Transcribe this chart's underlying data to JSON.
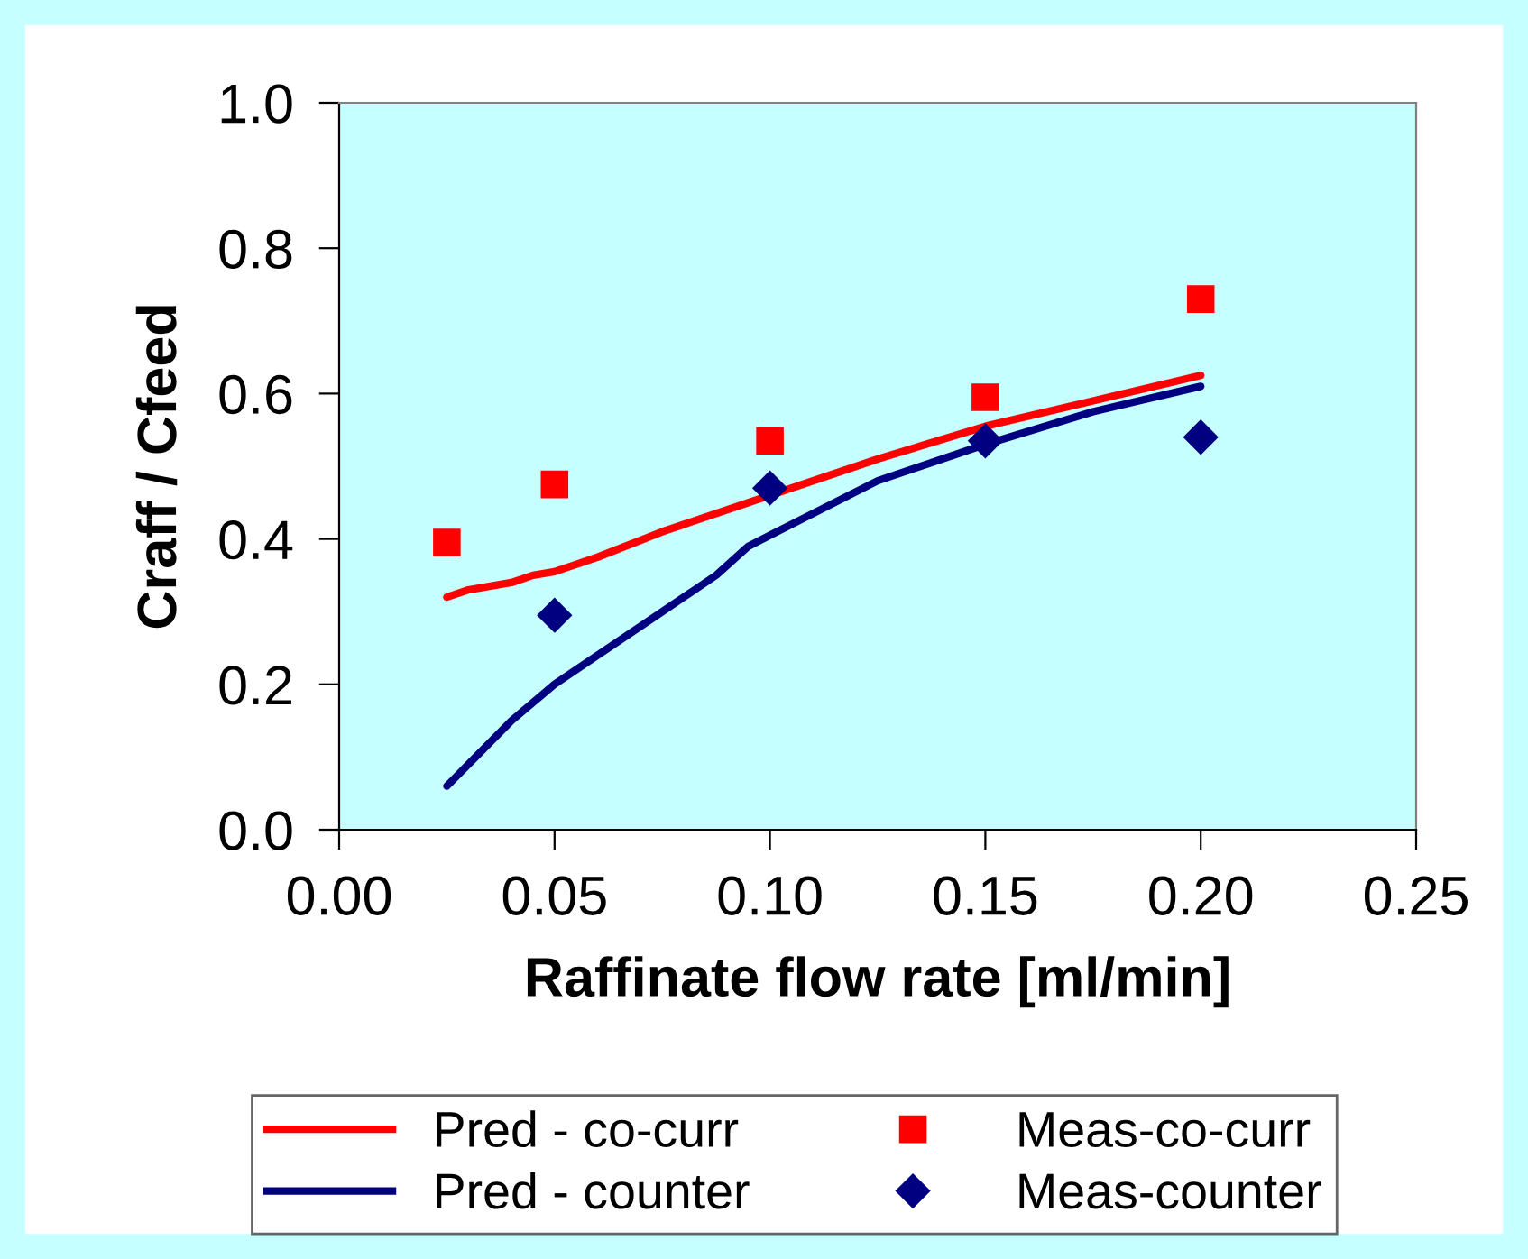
{
  "chart_data": {
    "type": "line",
    "xlabel": "Raffinate flow rate [ml/min]",
    "ylabel": "Craff / Cfeed",
    "xlim": [
      0,
      0.25
    ],
    "xticks": [
      {
        "value": 0,
        "label": "0.00"
      },
      {
        "value": 0.05,
        "label": "0.05"
      },
      {
        "value": 0.1,
        "label": "0.10"
      },
      {
        "value": 0.15,
        "label": "0.15"
      },
      {
        "value": 0.2,
        "label": "0.20"
      },
      {
        "value": 0.25,
        "label": "0.25"
      }
    ],
    "ylim": [
      0,
      1
    ],
    "yticks": [
      {
        "value": 0,
        "label": "0.0"
      },
      {
        "value": 0.2,
        "label": "0.2"
      },
      {
        "value": 0.4,
        "label": "0.4"
      },
      {
        "value": 0.6,
        "label": "0.6"
      },
      {
        "value": 0.8,
        "label": "0.8"
      },
      {
        "value": 1,
        "label": "1.0"
      }
    ],
    "grid": false,
    "legend": "bottom",
    "series": [
      {
        "name": "Pred - co-curr",
        "color": "#ff0000",
        "marker": "none",
        "x": [
          0.025,
          0.03,
          0.04,
          0.045,
          0.05,
          0.06,
          0.075,
          0.1,
          0.125,
          0.15,
          0.175,
          0.2
        ],
        "values": [
          0.32,
          0.33,
          0.34,
          0.35,
          0.355,
          0.375,
          0.41,
          0.46,
          0.51,
          0.555,
          0.59,
          0.625
        ]
      },
      {
        "name": "Meas-co-curr",
        "type": "scatter",
        "color": "#ff0000",
        "marker": "square",
        "x": [
          0.025,
          0.05,
          0.1,
          0.15,
          0.2
        ],
        "values": [
          0.395,
          0.475,
          0.535,
          0.595,
          0.73
        ]
      },
      {
        "name": "Pred - counter",
        "color": "#000080",
        "marker": "none",
        "x": [
          0.025,
          0.03,
          0.04,
          0.05,
          0.06,
          0.075,
          0.0875,
          0.095,
          0.1,
          0.125,
          0.15,
          0.175,
          0.2
        ],
        "values": [
          0.06,
          0.09,
          0.15,
          0.2,
          0.24,
          0.3,
          0.35,
          0.39,
          0.405,
          0.48,
          0.53,
          0.575,
          0.61
        ]
      },
      {
        "name": "Meas-counter",
        "type": "scatter",
        "color": "#000080",
        "marker": "diamond",
        "x": [
          0.05,
          0.1,
          0.15,
          0.2
        ],
        "values": [
          0.295,
          0.47,
          0.535,
          0.54
        ]
      }
    ]
  }
}
